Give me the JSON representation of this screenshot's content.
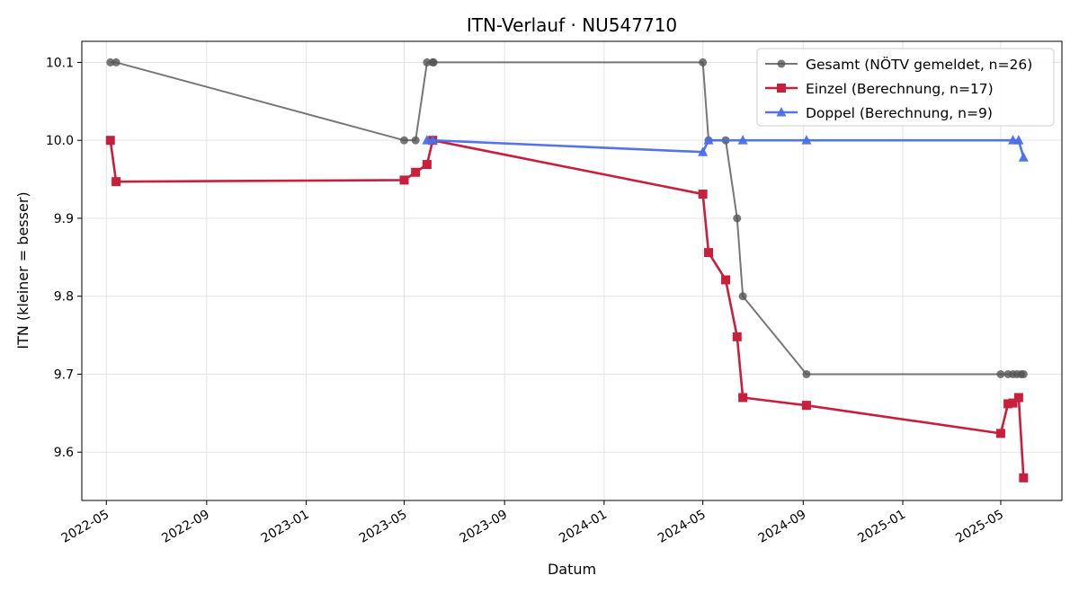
{
  "chart_data": {
    "type": "line",
    "title": "ITN-Verlauf · NU547710",
    "xlabel": "Datum",
    "ylabel": "ITN  (kleiner = besser)",
    "xlim": [
      "2022-04-01",
      "2025-07-15"
    ],
    "ylim": [
      9.538,
      10.127
    ],
    "grid": true,
    "legend_position": "top-right",
    "x_ticks": [
      "2022-05",
      "2022-09",
      "2023-01",
      "2023-05",
      "2023-09",
      "2024-01",
      "2024-05",
      "2024-09",
      "2025-01",
      "2025-05"
    ],
    "y_ticks": [
      "9.6",
      "9.7",
      "9.8",
      "9.9",
      "10.0",
      "10.1"
    ],
    "series": [
      {
        "name": "Gesamt (NÖTV gemeldet, n=26)",
        "color": "#555555",
        "marker": "circle",
        "x": [
          "2022-05-06",
          "2022-05-13",
          "2023-05-01",
          "2023-05-15",
          "2023-05-29",
          "2023-06-05",
          "2023-06-06",
          "2024-05-01",
          "2024-05-08",
          "2024-05-29",
          "2024-06-12",
          "2024-06-19",
          "2024-09-05",
          "2025-05-01",
          "2025-05-10",
          "2025-05-16",
          "2025-05-21",
          "2025-05-26",
          "2025-05-29"
        ],
        "values": [
          10.1,
          10.1,
          10.0,
          10.0,
          10.1,
          10.1,
          10.1,
          10.1,
          10.0,
          10.0,
          9.9,
          9.8,
          9.7,
          9.7,
          9.7,
          9.7,
          9.7,
          9.7,
          9.7
        ]
      },
      {
        "name": "Einzel (Berechnung, n=17)",
        "color": "#c8203c",
        "marker": "square",
        "x": [
          "2022-05-06",
          "2022-05-13",
          "2023-05-01",
          "2023-05-15",
          "2023-05-29",
          "2023-06-05",
          "2024-05-01",
          "2024-05-08",
          "2024-05-29",
          "2024-06-12",
          "2024-06-19",
          "2024-09-05",
          "2025-05-01",
          "2025-05-10",
          "2025-05-16",
          "2025-05-23",
          "2025-05-29"
        ],
        "values": [
          10.0,
          9.947,
          9.949,
          9.959,
          9.969,
          10.0,
          9.931,
          9.856,
          9.821,
          9.748,
          9.67,
          9.66,
          9.624,
          9.662,
          9.663,
          9.67,
          9.567
        ]
      },
      {
        "name": "Doppel (Berechnung, n=9)",
        "color": "#4a6ee8",
        "marker": "triangle",
        "x": [
          "2023-05-29",
          "2023-06-05",
          "2024-05-01",
          "2024-05-08",
          "2024-06-19",
          "2024-09-05",
          "2025-05-16",
          "2025-05-23",
          "2025-05-29"
        ],
        "values": [
          10.0,
          10.0,
          9.985,
          10.0,
          10.0,
          10.0,
          10.0,
          10.0,
          9.978
        ]
      }
    ]
  }
}
